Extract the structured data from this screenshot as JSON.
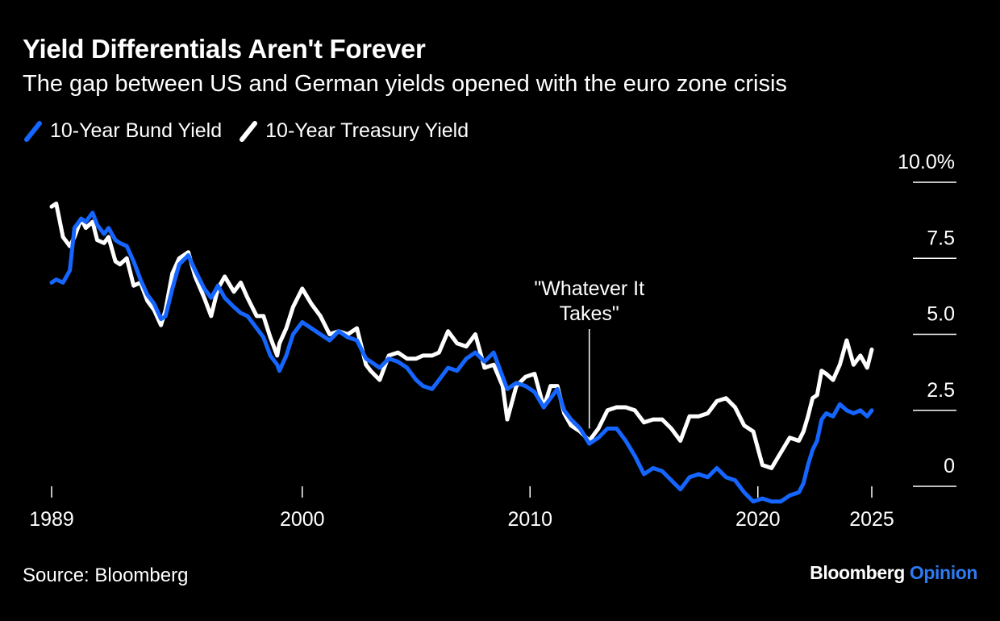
{
  "title": "Yield Differentials Aren't Forever",
  "subtitle": "The gap between US and German yields opened with the euro zone crisis",
  "source": "Source: Bloomberg",
  "brand": {
    "name": "Bloomberg",
    "suffix": "Opinion"
  },
  "colors": {
    "bund": "#1565ff",
    "treasury": "#ffffff",
    "background": "#000000",
    "brand_accent": "#2d7bf4"
  },
  "chart_data": {
    "type": "line",
    "title": "Yield Differentials Aren't Forever",
    "xlim": [
      1989,
      2025
    ],
    "ylim": [
      0,
      10
    ],
    "y_ticks": [
      {
        "value": 10,
        "label": "10.0%"
      },
      {
        "value": 7.5,
        "label": "7.5"
      },
      {
        "value": 5,
        "label": "5.0"
      },
      {
        "value": 2.5,
        "label": "2.5"
      },
      {
        "value": 0,
        "label": "0"
      }
    ],
    "x_ticks": [
      {
        "value": 1989,
        "label": "1989"
      },
      {
        "value": 2000,
        "label": "2000"
      },
      {
        "value": 2010,
        "label": "2010"
      },
      {
        "value": 2020,
        "label": "2020"
      },
      {
        "value": 2025,
        "label": "2025"
      }
    ],
    "legend_position": "top-left",
    "grid": false,
    "annotations": [
      {
        "text_lines": [
          "\"Whatever It",
          "Takes\""
        ],
        "x": 2012.6,
        "y_line_end": 1.9
      }
    ],
    "series": [
      {
        "name": "10-Year Bund Yield",
        "color": "#1565ff",
        "x": [
          1989.0,
          1989.2,
          1989.5,
          1989.8,
          1990.0,
          1990.3,
          1990.5,
          1990.8,
          1991.0,
          1991.3,
          1991.5,
          1991.8,
          1992.0,
          1992.3,
          1992.6,
          1992.9,
          1993.2,
          1993.5,
          1993.8,
          1994.0,
          1994.3,
          1994.6,
          1995.0,
          1995.3,
          1995.7,
          1996.0,
          1996.3,
          1996.6,
          1997.0,
          1997.3,
          1997.6,
          1998.0,
          1998.3,
          1998.6,
          1998.9,
          1999.0,
          1999.3,
          1999.6,
          2000.0,
          2000.4,
          2000.8,
          2001.2,
          2001.6,
          2002.0,
          2002.4,
          2002.8,
          2003.0,
          2003.4,
          2003.8,
          2004.2,
          2004.6,
          2005.0,
          2005.3,
          2005.7,
          2006.0,
          2006.4,
          2006.8,
          2007.2,
          2007.6,
          2008.0,
          2008.4,
          2008.8,
          2009.0,
          2009.4,
          2009.8,
          2010.2,
          2010.6,
          2010.9,
          2011.2,
          2011.5,
          2011.8,
          2012.2,
          2012.6,
          2013.0,
          2013.4,
          2013.8,
          2014.2,
          2014.6,
          2015.0,
          2015.4,
          2015.8,
          2016.2,
          2016.6,
          2017.0,
          2017.4,
          2017.8,
          2018.2,
          2018.6,
          2019.0,
          2019.4,
          2019.8,
          2020.2,
          2020.6,
          2021.0,
          2021.4,
          2021.8,
          2022.0,
          2022.2,
          2022.4,
          2022.6,
          2022.8,
          2023.0,
          2023.3,
          2023.6,
          2023.9,
          2024.2,
          2024.5,
          2024.8,
          2025.0
        ],
        "values": [
          6.7,
          6.8,
          6.7,
          7.1,
          8.5,
          8.8,
          8.7,
          9.0,
          8.6,
          8.3,
          8.5,
          8.1,
          8.0,
          7.9,
          7.4,
          6.8,
          6.3,
          6.0,
          5.5,
          5.6,
          6.5,
          7.3,
          7.6,
          7.1,
          6.5,
          6.2,
          6.6,
          6.2,
          5.9,
          5.7,
          5.6,
          5.2,
          4.9,
          4.3,
          4.0,
          3.8,
          4.3,
          5.0,
          5.4,
          5.2,
          5.0,
          4.8,
          5.1,
          4.9,
          4.8,
          4.2,
          4.1,
          3.9,
          4.2,
          4.1,
          3.9,
          3.5,
          3.3,
          3.2,
          3.5,
          3.9,
          3.8,
          4.2,
          4.4,
          4.1,
          4.4,
          3.6,
          3.2,
          3.4,
          3.3,
          3.1,
          2.6,
          2.9,
          3.2,
          2.5,
          2.2,
          1.9,
          1.4,
          1.6,
          1.9,
          1.9,
          1.5,
          1.0,
          0.4,
          0.6,
          0.5,
          0.2,
          -0.1,
          0.3,
          0.4,
          0.3,
          0.6,
          0.3,
          0.2,
          -0.2,
          -0.5,
          -0.4,
          -0.5,
          -0.5,
          -0.3,
          -0.2,
          0.1,
          0.7,
          1.2,
          1.5,
          2.2,
          2.4,
          2.3,
          2.7,
          2.5,
          2.4,
          2.5,
          2.3,
          2.5
        ]
      },
      {
        "name": "10-Year Treasury Yield",
        "color": "#ffffff",
        "x": [
          1989.0,
          1989.2,
          1989.5,
          1989.8,
          1990.0,
          1990.3,
          1990.5,
          1990.8,
          1991.0,
          1991.3,
          1991.5,
          1991.8,
          1992.0,
          1992.3,
          1992.6,
          1992.9,
          1993.2,
          1993.5,
          1993.8,
          1994.0,
          1994.3,
          1994.6,
          1995.0,
          1995.3,
          1995.7,
          1996.0,
          1996.3,
          1996.6,
          1997.0,
          1997.3,
          1997.6,
          1998.0,
          1998.3,
          1998.6,
          1998.9,
          1999.0,
          1999.3,
          1999.6,
          2000.0,
          2000.4,
          2000.8,
          2001.2,
          2001.6,
          2002.0,
          2002.4,
          2002.8,
          2003.0,
          2003.4,
          2003.8,
          2004.2,
          2004.6,
          2005.0,
          2005.3,
          2005.7,
          2006.0,
          2006.4,
          2006.8,
          2007.2,
          2007.6,
          2008.0,
          2008.4,
          2008.8,
          2009.0,
          2009.4,
          2009.8,
          2010.2,
          2010.6,
          2010.9,
          2011.2,
          2011.5,
          2011.8,
          2012.2,
          2012.6,
          2013.0,
          2013.4,
          2013.8,
          2014.2,
          2014.6,
          2015.0,
          2015.4,
          2015.8,
          2016.2,
          2016.6,
          2017.0,
          2017.4,
          2017.8,
          2018.2,
          2018.6,
          2019.0,
          2019.4,
          2019.8,
          2020.2,
          2020.6,
          2021.0,
          2021.4,
          2021.8,
          2022.0,
          2022.2,
          2022.4,
          2022.6,
          2022.8,
          2023.0,
          2023.3,
          2023.6,
          2023.9,
          2024.2,
          2024.5,
          2024.8,
          2025.0
        ],
        "values": [
          9.2,
          9.3,
          8.2,
          7.9,
          8.2,
          8.8,
          8.5,
          8.7,
          8.1,
          8.0,
          8.2,
          7.4,
          7.3,
          7.5,
          6.6,
          6.7,
          6.1,
          5.8,
          5.3,
          5.8,
          7.0,
          7.5,
          7.7,
          6.9,
          6.2,
          5.6,
          6.5,
          6.9,
          6.4,
          6.7,
          6.2,
          5.6,
          5.6,
          4.9,
          4.3,
          4.7,
          5.2,
          5.9,
          6.5,
          6.0,
          5.6,
          5.0,
          5.1,
          5.0,
          5.2,
          4.0,
          3.8,
          3.5,
          4.3,
          4.4,
          4.2,
          4.2,
          4.3,
          4.3,
          4.4,
          5.1,
          4.7,
          4.6,
          5.0,
          3.9,
          4.0,
          3.3,
          2.2,
          3.3,
          3.6,
          3.7,
          2.6,
          3.3,
          3.3,
          2.4,
          2.0,
          1.8,
          1.5,
          1.9,
          2.5,
          2.6,
          2.6,
          2.5,
          2.1,
          2.2,
          2.2,
          1.9,
          1.5,
          2.3,
          2.3,
          2.4,
          2.8,
          2.9,
          2.6,
          2.0,
          1.8,
          0.7,
          0.6,
          1.1,
          1.6,
          1.5,
          1.8,
          2.3,
          2.9,
          3.0,
          3.8,
          3.7,
          3.5,
          4.0,
          4.8,
          4.0,
          4.3,
          3.9,
          4.5
        ]
      }
    ]
  }
}
